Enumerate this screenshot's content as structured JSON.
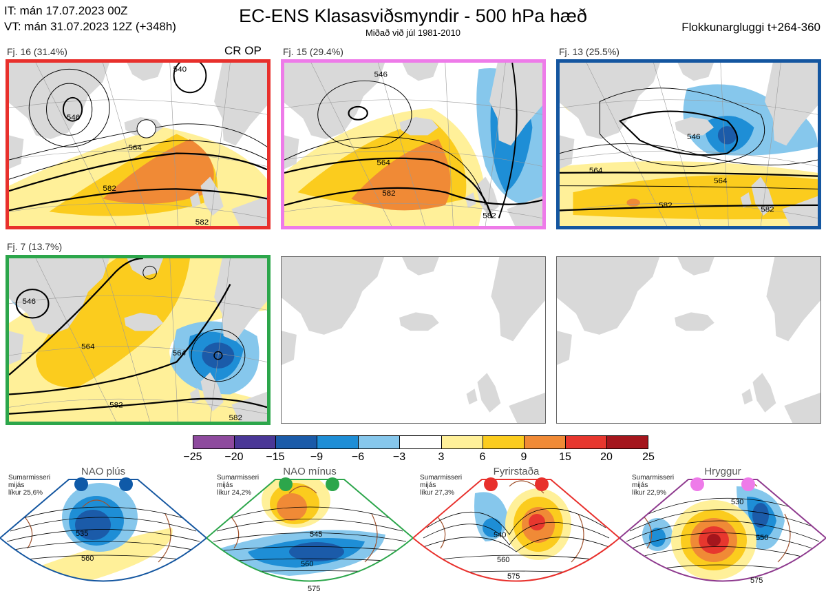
{
  "header": {
    "it_line": "IT: mán 17.07.2023 00Z",
    "vt_line": "VT: mán 31.07.2023 12Z  (+348h)",
    "title": "EC-ENS Klasasviðsmyndir - 500 hPa hæð",
    "subtitle": "Miðað við júl 1981-2010",
    "window": "Flokkunargluggi t+264-360"
  },
  "clusters": [
    {
      "label": "Fj. 16 (31.4%)",
      "extra": "CR OP",
      "frame": "#e8302c",
      "contours": [
        "564",
        "582",
        "582",
        "540",
        "546"
      ]
    },
    {
      "label": "Fj. 15 (29.4%)",
      "frame": "#ee7be9",
      "contours": [
        "546",
        "564",
        "582",
        "582"
      ]
    },
    {
      "label": "Fj. 13 (25.5%)",
      "frame": "#1456a0",
      "contours": [
        "546",
        "564",
        "564",
        "582",
        "582"
      ]
    },
    {
      "label": "Fj. 7 (13.7%)",
      "frame": "#2ca64b",
      "contours": [
        "546",
        "564",
        "564",
        "582",
        "582"
      ]
    }
  ],
  "colorbar": {
    "colors": [
      "#8e4a9e",
      "#4a3797",
      "#1b5ba9",
      "#1e8ed6",
      "#86c7ec",
      "#ffffff",
      "#fff099",
      "#fbcc1e",
      "#f08a36",
      "#e7372e",
      "#a5161d"
    ],
    "ticks": [
      "−25",
      "−20",
      "−15",
      "−9",
      "−6",
      "−3",
      "3",
      "6",
      "9",
      "15",
      "20",
      "25"
    ]
  },
  "regimes": [
    {
      "name": "NAO plús",
      "note1": "Sumarmisseri",
      "note2": "mijás",
      "note3": "líkur 25,6%",
      "dot": "#0f5aa8",
      "frame": "#1456a0",
      "contours": [
        "535",
        "560"
      ]
    },
    {
      "name": "NAO mínus",
      "note1": "Sumarmisseri",
      "note2": "mijás",
      "note3": "líkur 24,2%",
      "dot": "#2ca64b",
      "frame": "#2ca64b",
      "contours": [
        "545",
        "560",
        "575"
      ]
    },
    {
      "name": "Fyrirstaða",
      "note1": "Sumarmisseri",
      "note2": "mijás",
      "note3": "líkur 27,3%",
      "dot": "#e8302c",
      "frame": "#e8302c",
      "contours": [
        "540",
        "560",
        "575"
      ]
    },
    {
      "name": "Hryggur",
      "note1": "Sumarmisseri",
      "note2": "mijás",
      "note3": "líkur 22,9%",
      "dot": "#ee7be9",
      "frame": "#8e3a8e",
      "contours": [
        "530",
        "550",
        "575"
      ]
    }
  ]
}
